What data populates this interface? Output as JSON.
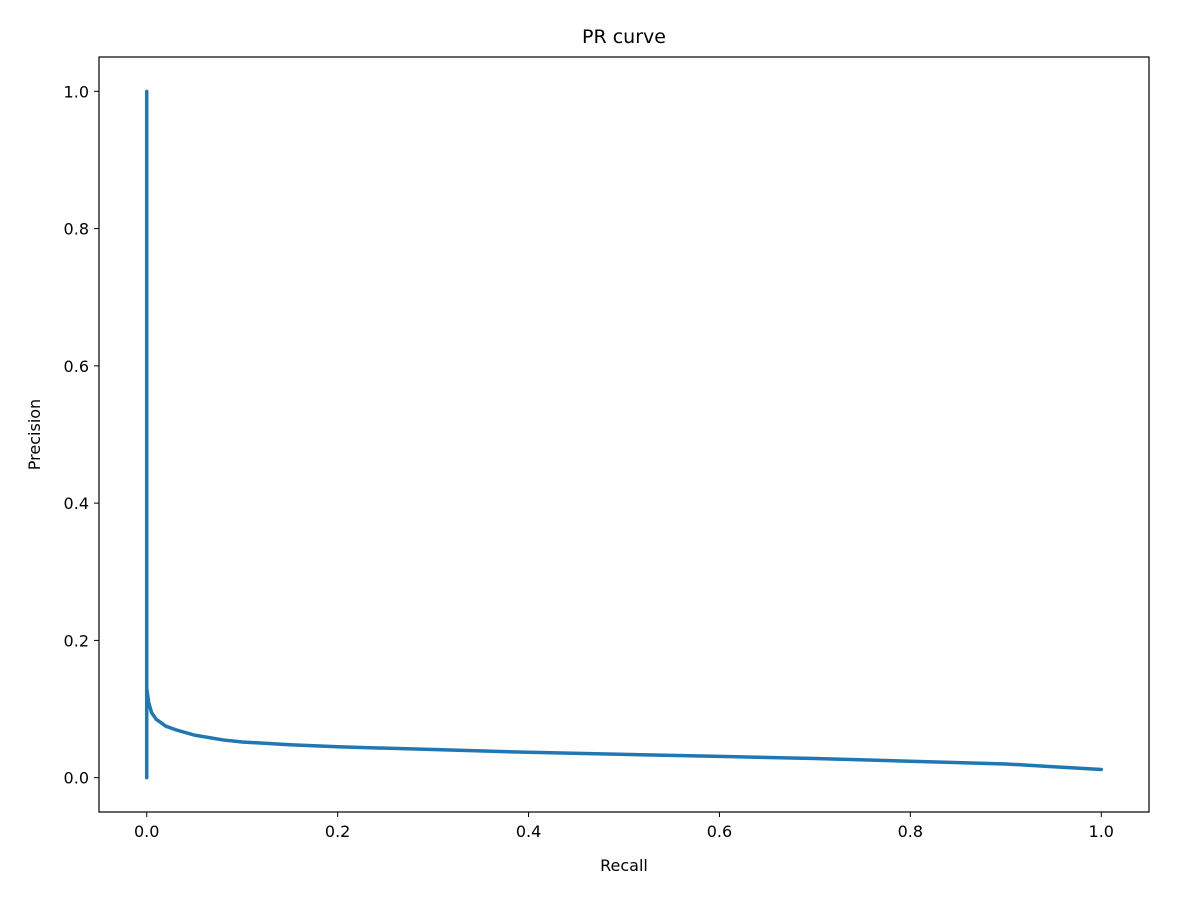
{
  "chart_data": {
    "type": "line",
    "title": "PR curve",
    "xlabel": "Recall",
    "ylabel": "Precision",
    "xlim": [
      -0.05,
      1.05
    ],
    "ylim": [
      -0.05,
      1.05
    ],
    "x_ticks": [
      0.0,
      0.2,
      0.4,
      0.6,
      0.8,
      1.0
    ],
    "y_ticks": [
      0.0,
      0.2,
      0.4,
      0.6,
      0.8,
      1.0
    ],
    "x_tick_labels": [
      "0.0",
      "0.2",
      "0.4",
      "0.6",
      "0.8",
      "1.0"
    ],
    "y_tick_labels": [
      "0.0",
      "0.2",
      "0.4",
      "0.6",
      "0.8",
      "1.0"
    ],
    "grid": false,
    "legend": "none",
    "series": [
      {
        "color": "#1f77b4",
        "x": [
          0.0,
          0.0,
          0.0,
          0.0,
          0.001,
          0.002,
          0.005,
          0.01,
          0.02,
          0.03,
          0.05,
          0.08,
          0.1,
          0.15,
          0.2,
          0.3,
          0.4,
          0.5,
          0.6,
          0.7,
          0.8,
          0.9,
          0.95,
          1.0
        ],
        "y": [
          0.0,
          1.0,
          0.5,
          0.13,
          0.12,
          0.11,
          0.095,
          0.085,
          0.075,
          0.07,
          0.062,
          0.055,
          0.052,
          0.048,
          0.045,
          0.041,
          0.037,
          0.034,
          0.031,
          0.028,
          0.024,
          0.02,
          0.016,
          0.012
        ]
      }
    ]
  }
}
